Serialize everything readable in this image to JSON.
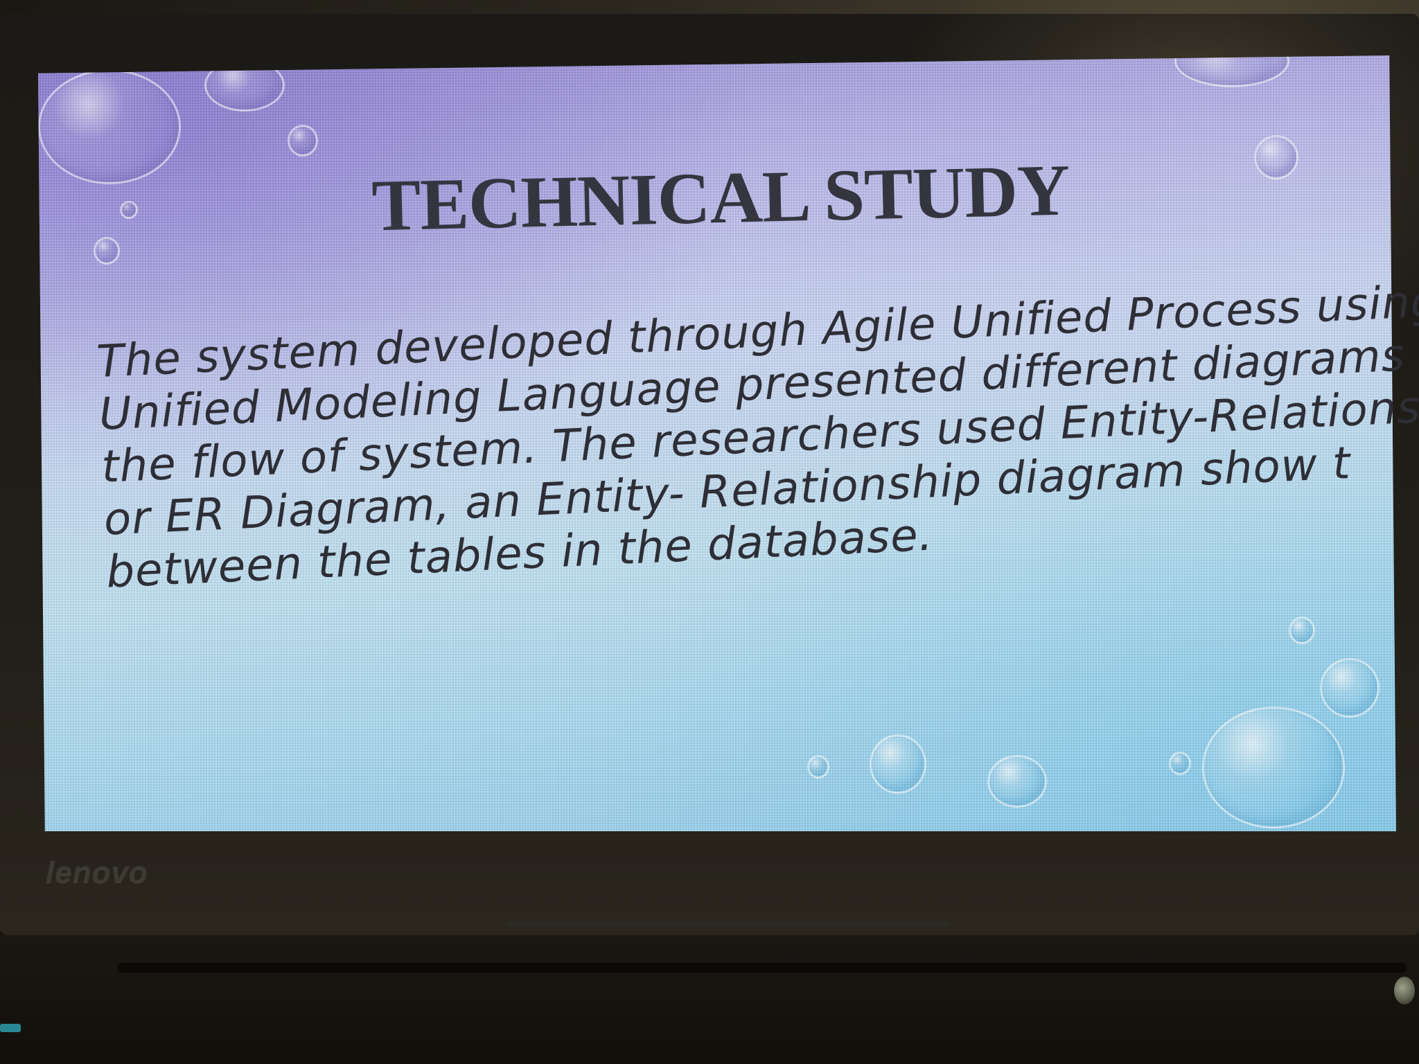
{
  "slide": {
    "title": "TECHNICAL STUDY",
    "body_lines": [
      "The system developed through Agile Unified Process using",
      "Unified Modeling Language presented different diagrams",
      "the flow of system. The researchers used Entity-Relations",
      "or ER Diagram, an Entity- Relationship diagram show t",
      "between the tables in the database."
    ]
  },
  "laptop": {
    "brand": "lenovo"
  },
  "colors": {
    "slide_top": "#9a8fd6",
    "slide_bottom": "#95cdea",
    "text": "#2e2e36",
    "bezel": "#1c1a16"
  }
}
